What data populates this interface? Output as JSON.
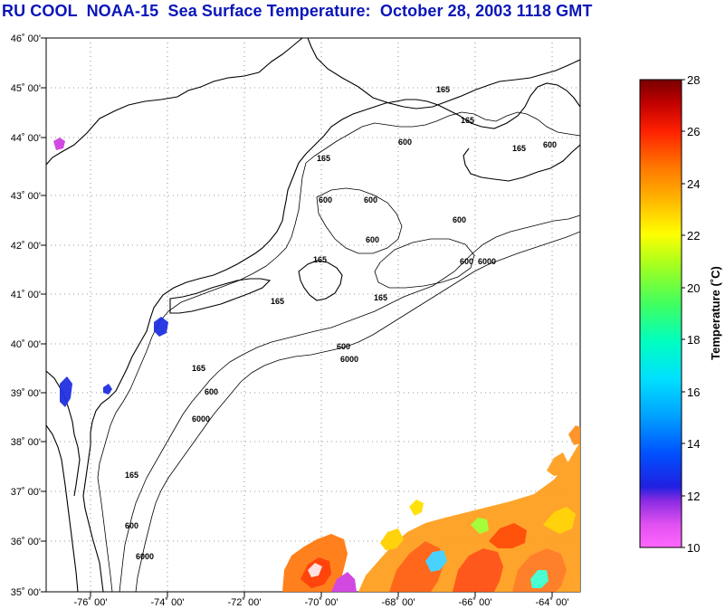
{
  "title": "RU COOL  NOAA-15  Sea Surface Temperature:  October 28, 2003 1118 GMT",
  "map": {
    "lat_labels": [
      "35˚ 00'",
      "36˚ 00'",
      "37˚ 00'",
      "38˚ 00'",
      "39˚ 00'",
      "40˚ 00'",
      "41˚ 00'",
      "42˚ 00'",
      "43˚ 00'",
      "44˚ 00'",
      "45˚ 00'",
      "46˚ 00'"
    ],
    "lon_labels": [
      "-76˚ 00'",
      "-74˚ 00'",
      "-72˚ 00'",
      "-70˚ 00'",
      "-68˚ 00'",
      "-66˚ 00'",
      "-64˚ 00'"
    ],
    "lat_range": [
      35,
      46
    ],
    "lon_range": [
      -77.1,
      -63.1
    ],
    "grid": "dotted",
    "isobath_labels": [
      "165",
      "600",
      "6000"
    ]
  },
  "colorbar": {
    "title": "Temperature (˚C)",
    "min": 10,
    "max": 28,
    "tick_labels": [
      "10",
      "12",
      "14",
      "16",
      "18",
      "20",
      "22",
      "24",
      "26",
      "28"
    ],
    "colormap": [
      "#ff60ff",
      "#c040e0",
      "#3020e0",
      "#0040ff",
      "#0090ff",
      "#00d0ff",
      "#00ffd0",
      "#40ff80",
      "#90ff30",
      "#ffff00",
      "#ffc000",
      "#ff8000",
      "#ff3000",
      "#e00000",
      "#a00000",
      "#7a0000"
    ]
  }
}
